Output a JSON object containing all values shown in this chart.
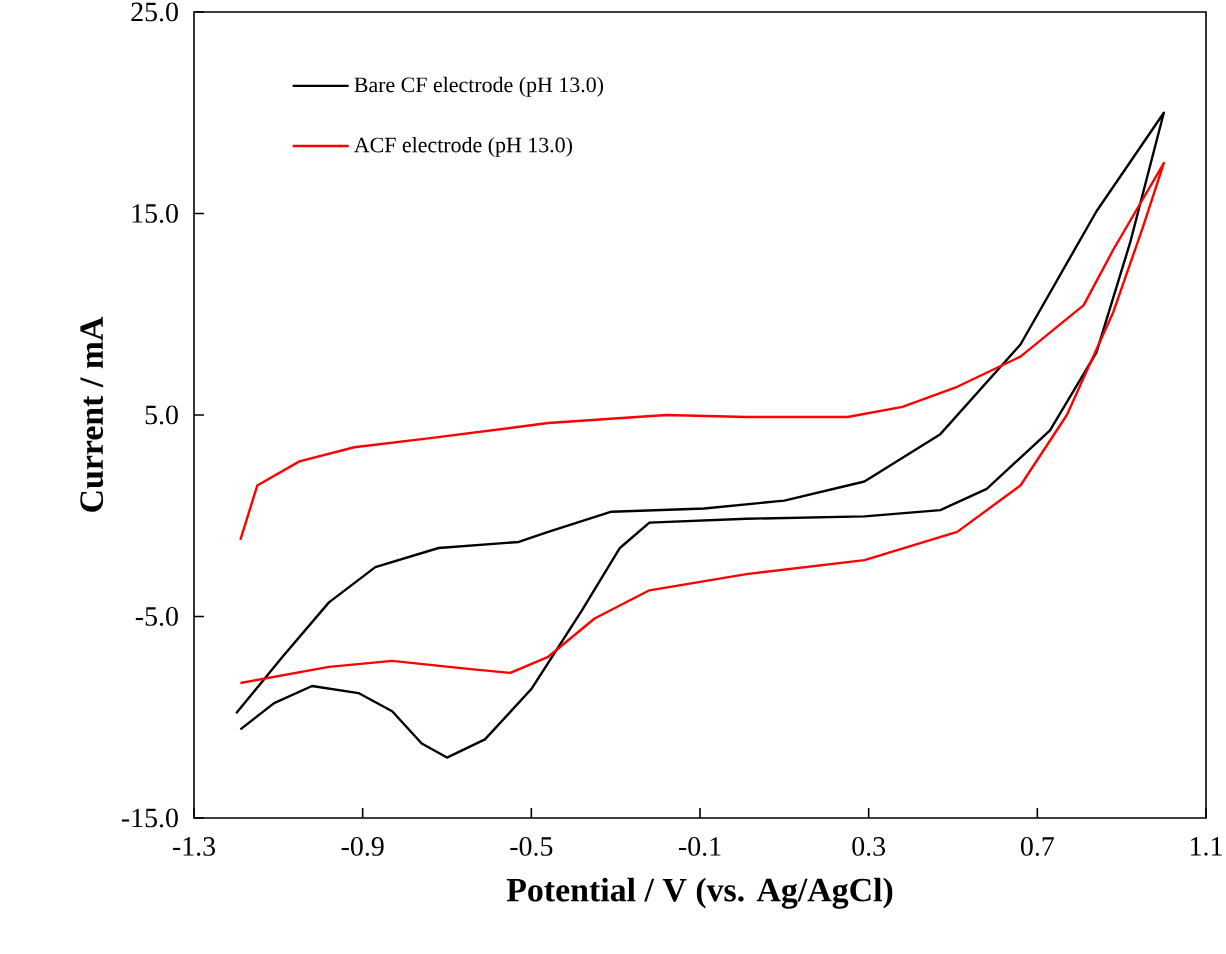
{
  "chart_data": {
    "type": "line",
    "xlabel": "Potential / V (vs. Ag/AgCl)",
    "ylabel": "Current / mA",
    "xlim": [
      -1.3,
      1.1
    ],
    "ylim": [
      -15,
      25
    ],
    "xticks": [
      -1.3,
      -0.9,
      -0.5,
      -0.1,
      0.3,
      0.7,
      1.1
    ],
    "yticks": [
      {
        "value": -15,
        "label": "-15.0"
      },
      {
        "value": -5,
        "label": "-5.0"
      },
      {
        "value": 5,
        "label": "5.0"
      },
      {
        "value": 15,
        "label": "15.0"
      },
      {
        "value": 25,
        "label": "25.0"
      }
    ],
    "legend": "top left",
    "grid": false,
    "marker": "none",
    "line_style": "solid",
    "series": [
      {
        "name": "Bare CF electrode (pH 13.0)",
        "color": "#000000",
        "x": [
          -1.2,
          -1.09,
          -0.98,
          -0.87,
          -0.72,
          -0.53,
          -0.46,
          -0.31,
          -0.09,
          0.1,
          0.29,
          0.47,
          0.66,
          0.84,
          1.0,
          0.92,
          0.84,
          0.73,
          0.58,
          0.47,
          0.29,
          0.01,
          -0.22,
          -0.29,
          -0.38,
          -0.5,
          -0.61,
          -0.7,
          -0.76,
          -0.83,
          -0.91,
          -1.02,
          -1.11,
          -1.19
        ],
        "values": [
          -9.8,
          -7.0,
          -4.3,
          -2.55,
          -1.6,
          -1.3,
          -0.8,
          0.2,
          0.36,
          0.75,
          1.7,
          4.05,
          8.5,
          15.1,
          20.0,
          13.55,
          8.1,
          4.24,
          1.33,
          0.28,
          -0.03,
          -0.15,
          -0.34,
          -1.6,
          -4.7,
          -8.6,
          -11.1,
          -12.0,
          -11.3,
          -9.7,
          -8.8,
          -8.45,
          -9.3,
          -10.6
        ]
      },
      {
        "name": "ACF electrode (pH 13.0)",
        "color": "#ff0000",
        "x": [
          -1.19,
          -1.15,
          -1.05,
          -0.92,
          -0.74,
          -0.46,
          -0.18,
          0.01,
          0.25,
          0.38,
          0.51,
          0.66,
          0.81,
          0.88,
          1.0,
          0.95,
          0.88,
          0.77,
          0.66,
          0.51,
          0.29,
          0.01,
          -0.22,
          -0.35,
          -0.46,
          -0.55,
          -0.65,
          -0.83,
          -0.98,
          -1.19
        ],
        "values": [
          -1.2,
          1.5,
          2.7,
          3.4,
          3.85,
          4.6,
          5.0,
          4.9,
          4.9,
          5.4,
          6.4,
          7.9,
          10.45,
          13.2,
          17.5,
          14.3,
          10.1,
          5.0,
          1.5,
          -0.8,
          -2.2,
          -2.9,
          -3.7,
          -5.1,
          -7.0,
          -7.8,
          -7.6,
          -7.2,
          -7.5,
          -8.3
        ]
      }
    ]
  }
}
